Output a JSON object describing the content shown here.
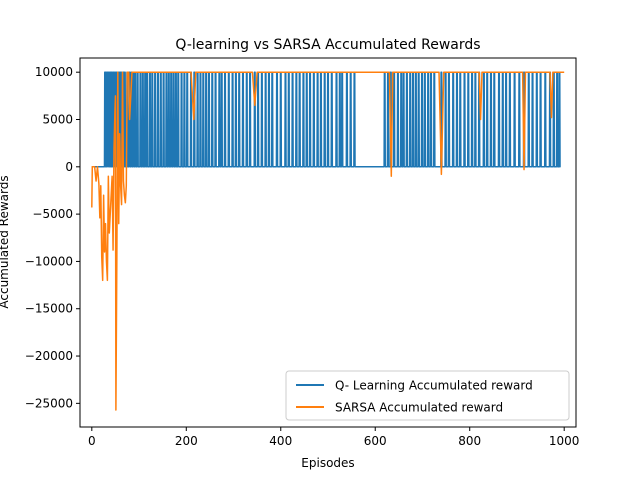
{
  "chart_data": {
    "type": "line",
    "title": "Q-learning vs SARSA Accumulated Rewards",
    "xlabel": "Episodes",
    "ylabel": "Accumulated Rewards",
    "xlim": [
      -25,
      1025
    ],
    "ylim": [
      -27500,
      11500
    ],
    "xticks": [
      0,
      200,
      400,
      600,
      800,
      1000
    ],
    "xtick_labels": [
      "0",
      "200",
      "400",
      "600",
      "800",
      "1000"
    ],
    "yticks": [
      10000,
      5000,
      0,
      -5000,
      -10000,
      -15000,
      -20000,
      -25000
    ],
    "ytick_labels": [
      "10000",
      "5000",
      "0",
      "−5000",
      "−10000",
      "−15000",
      "−20000",
      "−25000"
    ],
    "grid": false,
    "legend_position": "lower-right",
    "series": [
      {
        "name": "Q- Learning Accumulated reward",
        "color": "#1f77b4",
        "baseline": 0,
        "peak": 10000,
        "x_range": [
          0,
          990
        ],
        "spike_episodes": [
          28,
          30,
          33,
          36,
          39,
          41,
          43,
          46,
          49,
          52,
          55,
          58,
          61,
          64,
          67,
          70,
          75,
          80,
          84,
          88,
          92,
          97,
          103,
          108,
          113,
          117,
          123,
          128,
          134,
          140,
          146,
          152,
          158,
          163,
          168,
          173,
          178,
          183,
          190,
          196,
          202,
          210,
          217,
          224,
          230,
          236,
          242,
          248,
          255,
          262,
          270,
          275,
          282,
          290,
          298,
          305,
          312,
          320,
          328,
          335,
          345,
          352,
          360,
          368,
          375,
          382,
          392,
          400,
          410,
          417,
          425,
          433,
          440,
          448,
          455,
          462,
          470,
          478,
          485,
          493,
          500,
          508,
          518,
          525,
          530,
          540,
          548,
          556,
          620,
          627,
          633,
          640,
          648,
          655,
          660,
          667,
          674,
          680,
          686,
          692,
          699,
          705,
          712,
          718,
          725,
          740,
          749,
          756,
          765,
          773,
          780,
          789,
          797,
          805,
          812,
          820,
          830,
          837,
          845,
          852,
          862,
          870,
          877,
          885,
          895,
          905,
          915,
          925,
          933,
          942,
          950,
          960,
          970,
          978,
          985,
          990
        ]
      },
      {
        "name": "SARSA Accumulated reward",
        "color": "#ff7f0e",
        "x_start": 0,
        "x_end": 1000,
        "x": [
          0,
          1,
          3,
          6,
          9,
          12,
          15,
          17,
          19,
          21,
          23,
          25,
          27,
          29,
          31,
          33,
          35,
          37,
          39,
          41,
          43,
          45,
          47,
          49,
          50,
          51,
          53,
          55,
          57,
          59,
          61,
          63,
          65,
          67,
          69,
          71,
          73,
          75,
          78,
          80,
          85,
          90,
          95,
          100,
          150,
          210,
          216,
          220,
          225,
          230,
          340,
          345,
          350,
          400,
          630,
          634,
          637,
          640,
          650,
          700,
          735,
          740,
          745,
          800,
          820,
          823,
          826,
          830,
          900,
          912,
          915,
          918,
          925,
          970,
          973,
          976,
          980,
          1000
        ],
        "values": [
          -4300,
          0,
          0,
          0,
          -1500,
          0,
          -1800,
          -5400,
          -2000,
          -9500,
          -12000,
          -3000,
          -9000,
          -6000,
          -10000,
          -12000,
          -1000,
          -7000,
          -5000,
          -3000,
          -1000,
          -8800,
          2000,
          6000,
          7500,
          -25700,
          -9800,
          10000,
          -6000,
          3500,
          -2000,
          -4000,
          10000,
          -1500,
          -3000,
          -3800,
          -2000,
          10000,
          10000,
          5000,
          10000,
          10000,
          10000,
          10000,
          10000,
          10000,
          5000,
          10000,
          10000,
          10000,
          10000,
          6500,
          10000,
          10000,
          10000,
          -1000,
          10000,
          10000,
          10000,
          10000,
          10000,
          -800,
          10000,
          10000,
          10000,
          5000,
          10000,
          10000,
          10000,
          10000,
          -300,
          10000,
          10000,
          10000,
          5200,
          10000,
          10000,
          10000
        ]
      }
    ]
  }
}
